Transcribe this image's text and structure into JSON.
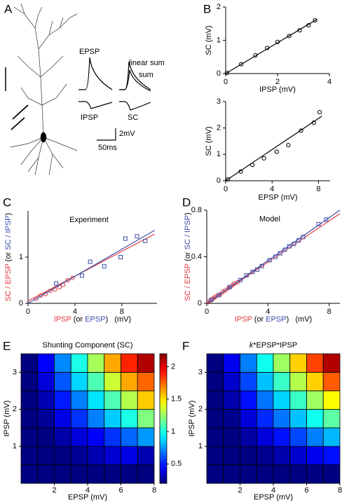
{
  "panel_a": {
    "label": "A",
    "epsp": "EPSP",
    "ipsp": "IPSP",
    "linear_sum": "linear sum",
    "sum": "sum",
    "sc": "SC",
    "scale_v": "2mV",
    "scale_t": "50ms"
  },
  "chart_data": [
    {
      "type": "scatter",
      "panel_label": "B",
      "xlabel": "IPSP (mV)",
      "ylabel": "SC (mV)",
      "xlim": [
        0,
        4
      ],
      "ylim": [
        0,
        2
      ],
      "xticks": [
        0,
        2,
        4
      ],
      "yticks": [
        0,
        1,
        2
      ],
      "series": [
        {
          "color": "#000000",
          "marker": "circle",
          "x": [
            0.05,
            0.6,
            1.15,
            1.6,
            2.0,
            2.45,
            2.85,
            3.2,
            3.45
          ],
          "values": [
            0.02,
            0.28,
            0.55,
            0.77,
            0.95,
            1.13,
            1.3,
            1.45,
            1.6
          ],
          "fit": {
            "x": [
              0,
              3.5
            ],
            "values": [
              0,
              1.62
            ]
          }
        }
      ]
    },
    {
      "type": "scatter",
      "xlabel": "EPSP (mV)",
      "ylabel": "SC (mV)",
      "xlim": [
        0,
        9
      ],
      "ylim": [
        0,
        3
      ],
      "xticks": [
        0,
        4,
        8
      ],
      "yticks": [
        0,
        1,
        2,
        3
      ],
      "series": [
        {
          "color": "#000000",
          "marker": "circle",
          "x": [
            0.2,
            1.3,
            2.3,
            3.3,
            4.4,
            5.4,
            6.5,
            7.6,
            8.1
          ],
          "values": [
            0.05,
            0.35,
            0.6,
            0.85,
            1.1,
            1.35,
            1.9,
            2.2,
            2.6
          ],
          "fit": {
            "x": [
              0,
              8.3
            ],
            "values": [
              0,
              2.45
            ]
          }
        }
      ]
    },
    {
      "type": "scatter",
      "panel_label": "C",
      "title": "Experiment",
      "xlabel_parts": [
        {
          "text": "IPSP",
          "color": "#e0393e"
        },
        {
          "text": " (or ",
          "color": "#000000"
        },
        {
          "text": "EPSP",
          "color": "#3b4ba8"
        },
        {
          "text": ")   (mV)",
          "color": "#000000"
        }
      ],
      "ylabel_parts": [
        {
          "text": "SC / EPSP",
          "color": "#e0393e"
        },
        {
          "text": " (or ",
          "color": "#000000"
        },
        {
          "text": "SC / IPSP",
          "color": "#3b4ba8"
        },
        {
          "text": ")",
          "color": "#000000"
        }
      ],
      "xlim": [
        0,
        11
      ],
      "ylim": [
        0,
        2
      ],
      "xticks": [
        0,
        4,
        8
      ],
      "yticks": [
        0,
        1
      ],
      "series": [
        {
          "color": "#e0393e",
          "marker": "circle",
          "x": [
            0.7,
            1.1,
            1.5,
            1.9,
            2.3,
            2.7,
            3.0,
            3.4,
            3.8
          ],
          "values": [
            0.1,
            0.17,
            0.2,
            0.27,
            0.3,
            0.35,
            0.4,
            0.5,
            0.55
          ],
          "fit": {
            "x": [
              0,
              10.8
            ],
            "values": [
              0.05,
              1.5
            ]
          }
        },
        {
          "color": "#3b4ba8",
          "marker": "square",
          "x": [
            2.4,
            4.6,
            5.3,
            6.5,
            7.9,
            8.3,
            9.3,
            10.0
          ],
          "values": [
            0.43,
            0.6,
            0.9,
            0.8,
            1.0,
            1.4,
            1.45,
            1.35
          ],
          "fit": {
            "x": [
              0,
              10.8
            ],
            "values": [
              0,
              1.58
            ]
          }
        }
      ]
    },
    {
      "type": "scatter",
      "panel_label": "D",
      "title": "Model",
      "xlabel_parts": [
        {
          "text": "IPSP",
          "color": "#e0393e"
        },
        {
          "text": " (or ",
          "color": "#000000"
        },
        {
          "text": "EPSP",
          "color": "#3b4ba8"
        },
        {
          "text": ")   (mV)",
          "color": "#000000"
        }
      ],
      "ylabel_parts": [
        {
          "text": "SC / EPSP",
          "color": "#e0393e"
        },
        {
          "text": " (or ",
          "color": "#000000"
        },
        {
          "text": "SC / IPSP",
          "color": "#3b4ba8"
        },
        {
          "text": ")",
          "color": "#000000"
        }
      ],
      "xlim": [
        0,
        8.7
      ],
      "ylim": [
        0,
        0.8
      ],
      "xticks": [
        0,
        4,
        8
      ],
      "yticks": [
        0,
        0.4,
        0.8
      ],
      "series": [
        {
          "color": "#e0393e",
          "marker": "circle",
          "x": [
            0.1,
            0.2,
            0.3,
            0.4,
            0.5,
            0.6,
            0.75,
            0.9,
            1.05,
            1.2,
            1.4,
            1.55,
            1.7,
            1.8,
            2.0
          ],
          "values": [
            0.01,
            0.02,
            0.03,
            0.04,
            0.05,
            0.06,
            0.07,
            0.08,
            0.1,
            0.11,
            0.13,
            0.14,
            0.16,
            0.17,
            0.18
          ],
          "fit": {
            "x": [
              0,
              8.7
            ],
            "values": [
              0,
              0.77
            ]
          }
        },
        {
          "color": "#3b4ba8",
          "marker": "square",
          "x": [
            0.3,
            0.8,
            1.5,
            2.2,
            2.6,
            3.0,
            3.3,
            3.6,
            4.1,
            4.5,
            4.8,
            5.1,
            5.4,
            5.7,
            6.0,
            6.3,
            7.3,
            7.8
          ],
          "values": [
            0.03,
            0.07,
            0.14,
            0.2,
            0.24,
            0.27,
            0.29,
            0.32,
            0.37,
            0.4,
            0.43,
            0.46,
            0.49,
            0.51,
            0.54,
            0.57,
            0.68,
            0.72
          ],
          "fit": {
            "x": [
              0,
              8.7
            ],
            "values": [
              0,
              0.8
            ]
          }
        }
      ]
    },
    {
      "type": "heatmap",
      "panel_label": "E",
      "title_parts": [
        {
          "text": "Shunting Component (SC)"
        }
      ],
      "xlabel": "EPSP (mV)",
      "ylabel": "IPSP (mV)",
      "xlim": [
        0,
        8
      ],
      "ylim": [
        0,
        3.5
      ],
      "xticks": [
        2,
        4,
        6,
        8
      ],
      "yticks": [
        1,
        2,
        3
      ],
      "colormap": "jet",
      "clim": [
        0.2,
        2.2
      ],
      "colorbar_ticks": [
        0.5,
        1,
        1.5,
        2
      ],
      "values": [
        [
          0.05,
          0.06,
          0.08,
          0.1,
          0.12,
          0.14,
          0.17,
          0.2
        ],
        [
          0.06,
          0.12,
          0.18,
          0.24,
          0.3,
          0.36,
          0.4,
          0.3
        ],
        [
          0.08,
          0.18,
          0.28,
          0.38,
          0.45,
          0.55,
          0.65,
          0.75
        ],
        [
          0.1,
          0.25,
          0.4,
          0.55,
          0.7,
          0.85,
          1.0,
          1.2
        ],
        [
          0.12,
          0.3,
          0.5,
          0.7,
          0.9,
          1.1,
          1.3,
          1.55
        ],
        [
          0.14,
          0.38,
          0.62,
          0.87,
          1.1,
          1.35,
          1.62,
          1.75
        ],
        [
          0.16,
          0.45,
          0.72,
          1.0,
          1.28,
          1.62,
          1.88,
          2.1
        ]
      ]
    },
    {
      "type": "heatmap",
      "panel_label": "F",
      "title_parts": [
        {
          "text": "k",
          "italic": true
        },
        {
          "text": "*EPSP*IPSP"
        }
      ],
      "xlabel": "EPSP (mV)",
      "ylabel": "IPSP (mV)",
      "xlim": [
        0,
        8
      ],
      "ylim": [
        0,
        3.5
      ],
      "xticks": [
        2,
        4,
        6,
        8
      ],
      "yticks": [
        1,
        2,
        3
      ],
      "colormap": "jet",
      "clim": [
        0.2,
        2.2
      ],
      "values": [
        [
          0.01,
          0.03,
          0.05,
          0.08,
          0.1,
          0.12,
          0.14,
          0.16
        ],
        [
          0.03,
          0.1,
          0.16,
          0.23,
          0.29,
          0.35,
          0.42,
          0.48
        ],
        [
          0.05,
          0.16,
          0.27,
          0.38,
          0.48,
          0.59,
          0.7,
          0.81
        ],
        [
          0.08,
          0.23,
          0.38,
          0.53,
          0.68,
          0.83,
          0.98,
          1.13
        ],
        [
          0.1,
          0.29,
          0.48,
          0.68,
          0.87,
          1.06,
          1.26,
          1.45
        ],
        [
          0.12,
          0.35,
          0.59,
          0.83,
          1.06,
          1.3,
          1.54,
          1.77
        ],
        [
          0.14,
          0.42,
          0.7,
          0.98,
          1.26,
          1.54,
          1.82,
          2.1
        ]
      ]
    }
  ]
}
